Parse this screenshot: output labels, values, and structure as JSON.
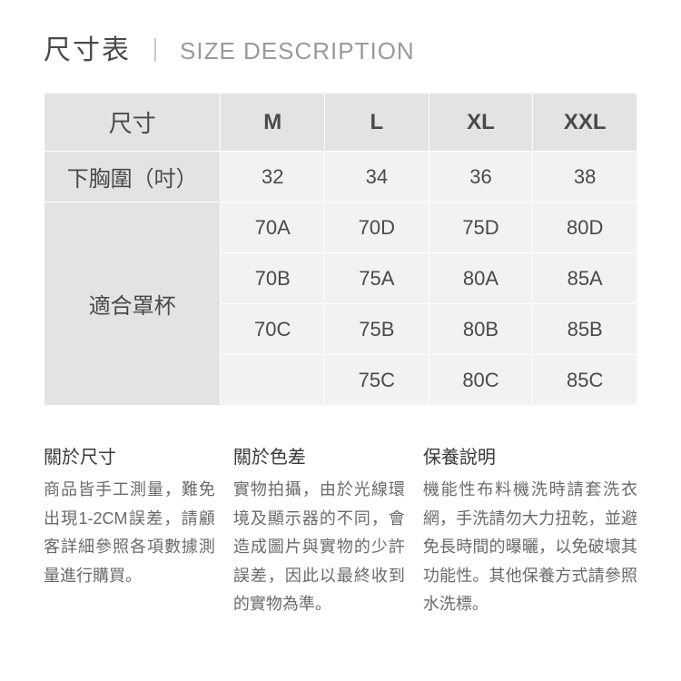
{
  "title": {
    "cn": "尺寸表",
    "sep": "｜",
    "en": "SIZE DESCRIPTION"
  },
  "table": {
    "header_label": "尺寸",
    "sizes": [
      "M",
      "L",
      "XL",
      "XXL"
    ],
    "row_underbust": {
      "label": "下胸圍（吋）",
      "values": [
        "32",
        "34",
        "36",
        "38"
      ]
    },
    "row_cup_label": "適合罩杯",
    "cup_rows": [
      [
        "70A",
        "70D",
        "75D",
        "80D"
      ],
      [
        "70B",
        "75A",
        "80A",
        "85A"
      ],
      [
        "70C",
        "75B",
        "80B",
        "85B"
      ],
      [
        "",
        "75C",
        "80C",
        "85C"
      ]
    ],
    "colors": {
      "header_bg": "#e3e3e3",
      "data_bg": "#f2f2f2",
      "border": "#ffffff",
      "text": "#4a4a4a"
    }
  },
  "notes": {
    "size": {
      "title": "關於尺寸",
      "body": "商品皆手工測量，難免出現1-2CM誤差，請顧客詳細參照各項數據測量進行購買。"
    },
    "color": {
      "title": "關於色差",
      "body": "實物拍攝，由於光線環境及顯示器的不同，會造成圖片與實物的少許誤差，因此以最終收到的實物為準。"
    },
    "care": {
      "title": "保養說明",
      "body": "機能性布料機洗時請套洗衣網，手洗請勿大力扭乾，並避免長時間的曝曬，以免破壞其功能性。其他保養方式請參照水洗標。"
    }
  }
}
